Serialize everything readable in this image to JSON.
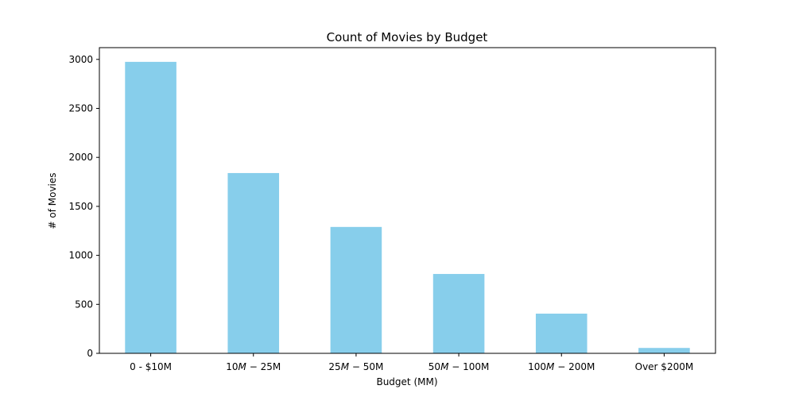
{
  "chart_data": {
    "type": "bar",
    "title": "Count of Movies by Budget",
    "xlabel": "Budget (MM)",
    "ylabel": "# of Movies",
    "categories": [
      "0 - $10M",
      "10M − 25M",
      "25M − 50M",
      "50M − 100M",
      "100M − 200M",
      "Over $200M"
    ],
    "category_parts": [
      {
        "plain": "0 - $10M"
      },
      {
        "a": "10",
        "ma": "M",
        "op": " − ",
        "b": "25",
        "mb": "M"
      },
      {
        "a": "25",
        "ma": "M",
        "op": " − ",
        "b": "50",
        "mb": "M"
      },
      {
        "a": "50",
        "ma": "M",
        "op": " − ",
        "b": "100",
        "mb": "M"
      },
      {
        "a": "100",
        "ma": "M",
        "op": " − ",
        "b": "200",
        "mb": "M"
      },
      {
        "plain": "Over $200M"
      }
    ],
    "values": [
      2975,
      1840,
      1290,
      810,
      405,
      55
    ],
    "ylim": [
      0,
      3120
    ],
    "yticks": [
      0,
      500,
      1000,
      1500,
      2000,
      2500,
      3000
    ],
    "bar_color": "#87ceeb",
    "grid": false
  }
}
